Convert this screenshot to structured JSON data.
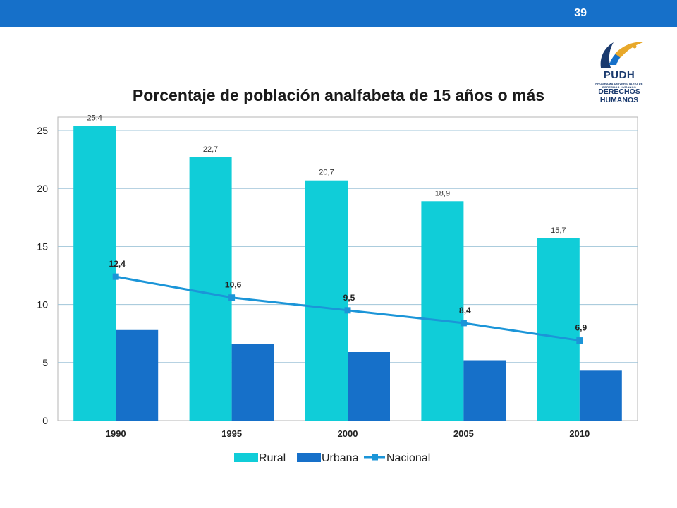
{
  "page": {
    "number": "39"
  },
  "logo": {
    "name": "PUDH",
    "subtitle": "PROGRAMA UNIVERSITARIO DE DERECHOS HUMANOS",
    "line1": "DERECHOS",
    "line2": "HUMANOS"
  },
  "chart_data": {
    "type": "bar",
    "title": "Porcentaje de población analfabeta de 15 años o más",
    "categories": [
      "1990",
      "1995",
      "2000",
      "2005",
      "2010"
    ],
    "series": [
      {
        "name": "Rural",
        "kind": "bar",
        "color": "#10cdd8",
        "values": [
          25.4,
          22.7,
          20.7,
          18.9,
          15.7
        ],
        "labels": [
          "25,4",
          "22,7",
          "20,7",
          "18,9",
          "15,7"
        ]
      },
      {
        "name": "Urbana",
        "kind": "bar",
        "color": "#1670c9",
        "values": [
          7.8,
          6.6,
          5.9,
          5.2,
          4.3
        ]
      },
      {
        "name": "Nacional",
        "kind": "line",
        "color": "#1b95d8",
        "values": [
          12.4,
          10.6,
          9.5,
          8.4,
          6.9
        ],
        "labels": [
          "12,4",
          "10,6",
          "9,5",
          "8,4",
          "6,9"
        ]
      }
    ],
    "ylim": [
      0,
      25
    ],
    "yticks": [
      "0",
      "5",
      "10",
      "15",
      "20",
      "25"
    ],
    "grid": true,
    "legend": "bottom"
  }
}
